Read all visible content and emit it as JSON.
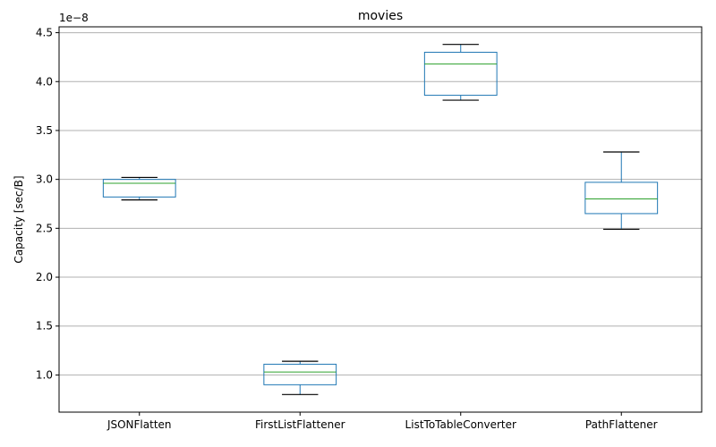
{
  "chart_data": {
    "type": "box",
    "title": "movies",
    "xlabel": "",
    "ylabel": "Capacity [sec/B]",
    "y_offset_label": "1e−8",
    "ylim": [
      0.62,
      4.56
    ],
    "yticks": [
      "1.0",
      "1.5",
      "2.0",
      "2.5",
      "3.0",
      "3.5",
      "4.0",
      "4.5"
    ],
    "ytick_values": [
      1.0,
      1.5,
      2.0,
      2.5,
      3.0,
      3.5,
      4.0,
      4.5
    ],
    "grid": "horizontal",
    "categories": [
      "JSONFlatten",
      "FirstListFlattener",
      "ListToTableConverter",
      "PathFlattener"
    ],
    "boxes": [
      {
        "whisker_low": 2.79,
        "q1": 2.82,
        "median": 2.96,
        "q3": 3.0,
        "whisker_high": 3.02
      },
      {
        "whisker_low": 0.8,
        "q1": 0.9,
        "median": 1.03,
        "q3": 1.11,
        "whisker_high": 1.14
      },
      {
        "whisker_low": 3.81,
        "q1": 3.86,
        "median": 4.18,
        "q3": 4.3,
        "whisker_high": 4.38
      },
      {
        "whisker_low": 2.49,
        "q1": 2.65,
        "median": 2.8,
        "q3": 2.97,
        "whisker_high": 3.28
      }
    ],
    "colors": {
      "box": "#1f77b4",
      "median": "#2ca02c",
      "whisker_cap": "#000000",
      "grid": "#b0b0b0"
    }
  }
}
